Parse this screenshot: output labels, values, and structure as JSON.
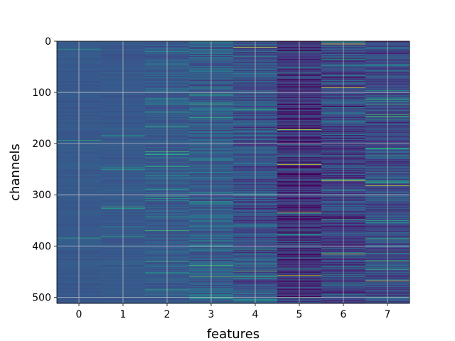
{
  "chart_data": {
    "type": "heatmap",
    "title": "",
    "xlabel": "features",
    "ylabel": "channels",
    "x_ticks": [
      0,
      1,
      2,
      3,
      4,
      5,
      6,
      7
    ],
    "y_ticks": [
      0,
      100,
      200,
      300,
      400,
      500
    ],
    "xlim": [
      -0.5,
      7.5
    ],
    "ylim": [
      512,
      0
    ],
    "n_columns": 8,
    "n_rows": 512,
    "y_axis_inverted": true,
    "grid": true,
    "colormap": "viridis",
    "colorbar": false,
    "column_background_colors": [
      "#3b528b",
      "#3b528b",
      "#3a518b",
      "#38508b",
      "#3a4588",
      "#33287d",
      "#3a3a85",
      "#3b3f86"
    ],
    "notable_bright_rows": [
      {
        "feature": 4,
        "channel": 11
      },
      {
        "feature": 5,
        "channel": 172
      },
      {
        "feature": 5,
        "channel": 240
      },
      {
        "feature": 5,
        "channel": 333
      },
      {
        "feature": 5,
        "channel": 457
      },
      {
        "feature": 6,
        "channel": 5
      },
      {
        "feature": 6,
        "channel": 90
      },
      {
        "feature": 6,
        "channel": 272
      },
      {
        "feature": 6,
        "channel": 415
      },
      {
        "feature": 7,
        "channel": 282
      },
      {
        "feature": 7,
        "channel": 468
      }
    ]
  },
  "colors": {
    "axes_frame": "#000000",
    "grid": "#cccccc"
  }
}
